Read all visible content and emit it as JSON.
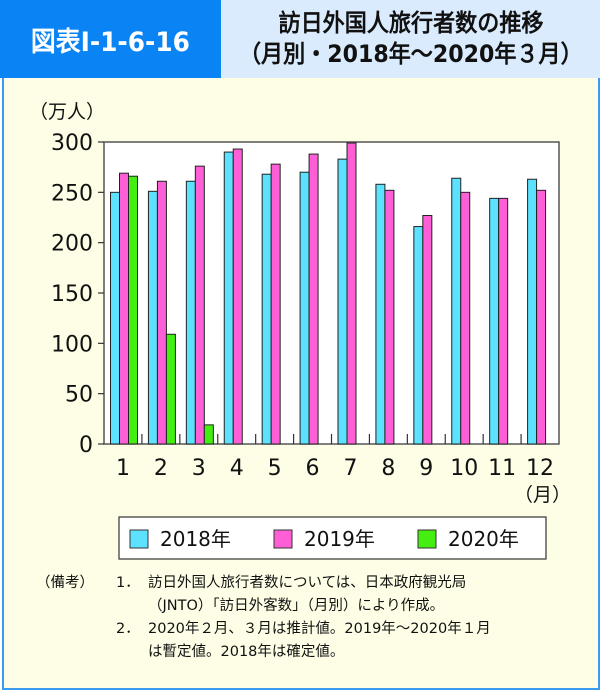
{
  "header": {
    "figure_id": "図表Ⅰ-1-6-16",
    "title_line1": "訪日外国人旅行者数の推移",
    "title_line2": "（月別・2018年～2020年３月）"
  },
  "colors": {
    "header_blue": "#0a84f5",
    "header_light": "#d9ebfc",
    "background": "#fefee6",
    "series_2018": "#5ce1ff",
    "series_2019": "#ff5fd6",
    "series_2020": "#44ee11"
  },
  "chart_data": {
    "type": "bar",
    "title": "訪日外国人旅行者数の推移（月別・2018年～2020年３月）",
    "xlabel": "（月）",
    "ylabel": "（万人）",
    "ylim": [
      0,
      300
    ],
    "yticks": [
      0,
      50,
      100,
      150,
      200,
      250,
      300
    ],
    "grid": false,
    "legend_position": "bottom",
    "categories": [
      "1",
      "2",
      "3",
      "4",
      "5",
      "6",
      "7",
      "8",
      "9",
      "10",
      "11",
      "12"
    ],
    "series": [
      {
        "name": "2018年",
        "color": "#5ce1ff",
        "values": [
          250,
          251,
          261,
          290,
          268,
          270,
          283,
          258,
          216,
          264,
          244,
          263
        ]
      },
      {
        "name": "2019年",
        "color": "#ff5fd6",
        "values": [
          269,
          261,
          276,
          293,
          278,
          288,
          299,
          252,
          227,
          250,
          244,
          252
        ]
      },
      {
        "name": "2020年",
        "color": "#44ee11",
        "values": [
          266,
          109,
          19
        ]
      }
    ]
  },
  "legend": {
    "items": [
      "2018年",
      "2019年",
      "2020年"
    ]
  },
  "notes": {
    "label": "（備考）",
    "items": [
      {
        "number": "1．",
        "line1": "訪日外国人旅行者数については、日本政府観光局",
        "line2": "（JNTO）「訪日外客数」（月別）により作成。"
      },
      {
        "number": "2．",
        "line1": "2020年２月、３月は推計値。2019年～2020年１月",
        "line2": "は暫定値。2018年は確定値。"
      }
    ]
  }
}
